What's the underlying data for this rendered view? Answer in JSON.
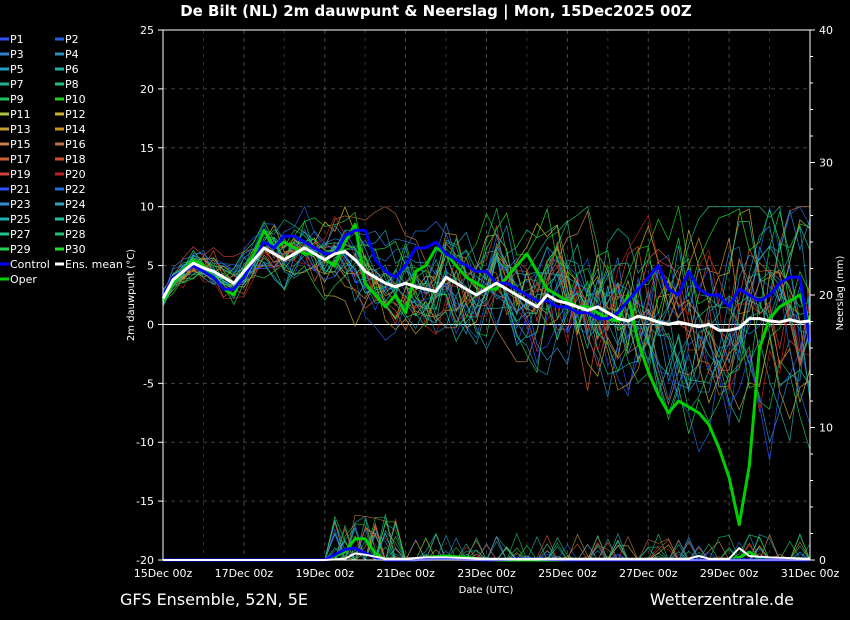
{
  "chart_data": {
    "type": "line",
    "title": "De Bilt  (NL)  2m dauwpunt & Neerslag | Mon, 15Dec2025 00Z",
    "xlabel": "Date (UTC)",
    "ylabel": "2m dauwpunt (°C)",
    "y2label": "Neerslag (mm)",
    "footer_left": "GFS Ensemble, 52N, 5E",
    "footer_right": "Wetterzentrale.de",
    "x_tick_labels": [
      "15Dec 00z",
      "17Dec 00z",
      "19Dec 00z",
      "21Dec 00z",
      "23Dec 00z",
      "25Dec 00z",
      "27Dec 00z",
      "29Dec 00z",
      "31Dec 00z"
    ],
    "y_ticks": [
      "25",
      "20",
      "15",
      "10",
      "5",
      "0",
      "-5",
      "-10",
      "-15",
      "-20"
    ],
    "y2_ticks": [
      "40",
      "30",
      "20",
      "10",
      "0"
    ],
    "ylim": [
      -20,
      25
    ],
    "y2lim": [
      0,
      40
    ],
    "x_range_days": [
      0,
      16
    ],
    "grid": true,
    "legend_placement": "left",
    "legend": [
      {
        "label": "P1",
        "color": "#3050ff"
      },
      {
        "label": "P2",
        "color": "#2060e0"
      },
      {
        "label": "P3",
        "color": "#3080d0"
      },
      {
        "label": "P4",
        "color": "#2a90c0"
      },
      {
        "label": "P5",
        "color": "#20a0c0"
      },
      {
        "label": "P6",
        "color": "#20b0a0"
      },
      {
        "label": "P7",
        "color": "#20b090"
      },
      {
        "label": "P8",
        "color": "#20c080"
      },
      {
        "label": "P9",
        "color": "#20c060"
      },
      {
        "label": "P10",
        "color": "#20d020"
      },
      {
        "label": "P11",
        "color": "#b0c040"
      },
      {
        "label": "P12",
        "color": "#d0b030"
      },
      {
        "label": "P13",
        "color": "#c0a030"
      },
      {
        "label": "P14",
        "color": "#d09020"
      },
      {
        "label": "P15",
        "color": "#c08050"
      },
      {
        "label": "P16",
        "color": "#c07040"
      },
      {
        "label": "P17",
        "color": "#d06030"
      },
      {
        "label": "P18",
        "color": "#d05030"
      },
      {
        "label": "P19",
        "color": "#d04040"
      },
      {
        "label": "P20",
        "color": "#c02020"
      },
      {
        "label": "P21",
        "color": "#3050ff"
      },
      {
        "label": "P22",
        "color": "#2070e0"
      },
      {
        "label": "P23",
        "color": "#3090d0"
      },
      {
        "label": "P24",
        "color": "#30a0c0"
      },
      {
        "label": "P25",
        "color": "#20b0b0"
      },
      {
        "label": "P26",
        "color": "#20c0a0"
      },
      {
        "label": "P27",
        "color": "#20c090"
      },
      {
        "label": "P28",
        "color": "#20c070"
      },
      {
        "label": "P29",
        "color": "#20d050"
      },
      {
        "label": "P30",
        "color": "#20e030"
      },
      {
        "label": "Control",
        "color": "#0000ff"
      },
      {
        "label": "Ens. mean",
        "color": "#ffffff"
      },
      {
        "label": "Oper",
        "color": "#00d000"
      }
    ],
    "series": [
      {
        "name": "Oper",
        "color": "#00d000",
        "width": 3,
        "x": [
          0,
          0.25,
          0.5,
          0.75,
          1,
          1.25,
          1.5,
          1.75,
          2,
          2.25,
          2.5,
          2.75,
          3,
          3.25,
          3.5,
          3.75,
          4,
          4.25,
          4.5,
          4.75,
          5,
          5.25,
          5.5,
          5.75,
          6,
          6.25,
          6.5,
          6.75,
          7,
          7.25,
          7.5,
          7.75,
          8,
          8.25,
          8.5,
          8.75,
          9,
          9.25,
          9.5,
          9.75,
          10,
          10.25,
          10.5,
          10.75,
          11,
          11.25,
          11.5,
          11.75,
          12,
          12.25,
          12.5,
          12.75,
          13,
          13.25,
          13.5,
          13.75,
          14,
          14.25,
          14.5,
          14.75,
          15,
          15.25,
          15.5,
          15.75,
          16
        ],
        "y": [
          2.0,
          3.5,
          4.5,
          5.5,
          5.0,
          4.0,
          3.0,
          2.5,
          4.5,
          6.0,
          8.0,
          6.5,
          7.0,
          6.5,
          6.0,
          6.0,
          5.5,
          5.0,
          7.0,
          8.5,
          3.5,
          2.5,
          1.5,
          2.5,
          1.0,
          4.5,
          5.0,
          6.5,
          6.0,
          5.0,
          4.0,
          3.5,
          3.0,
          3.0,
          4.0,
          5.0,
          6.0,
          4.5,
          3.0,
          2.5,
          2.0,
          1.5,
          1.5,
          1.0,
          0.5,
          0.3,
          2.5,
          -1.5,
          -4.0,
          -6.0,
          -7.5,
          -6.5,
          -7.0,
          -7.5,
          -8.5,
          -10.5,
          -13.0,
          -17.0,
          -12.0,
          -2.0,
          0.5,
          1.5,
          2.0,
          2.5,
          0.0
        ]
      },
      {
        "name": "Control",
        "color": "#0000ff",
        "width": 3,
        "x": [
          0,
          0.25,
          0.5,
          0.75,
          1,
          1.25,
          1.5,
          1.75,
          2,
          2.25,
          2.5,
          2.75,
          3,
          3.25,
          3.5,
          3.75,
          4,
          4.25,
          4.5,
          4.75,
          5,
          5.25,
          5.5,
          5.75,
          6,
          6.25,
          6.5,
          6.75,
          7,
          7.25,
          7.5,
          7.75,
          8,
          8.25,
          8.5,
          8.75,
          9,
          9.25,
          9.5,
          9.75,
          10,
          10.25,
          10.5,
          10.75,
          11,
          11.25,
          11.5,
          11.75,
          12,
          12.25,
          12.5,
          12.75,
          13,
          13.25,
          13.5,
          13.75,
          14,
          14.25,
          14.5,
          14.75,
          15,
          15.25,
          15.5,
          15.75,
          16
        ],
        "y": [
          2.5,
          4.0,
          4.5,
          5.0,
          4.5,
          4.0,
          3.0,
          3.0,
          4.0,
          5.5,
          7.0,
          6.5,
          7.5,
          7.5,
          7.0,
          6.5,
          6.0,
          6.0,
          7.5,
          8.0,
          8.0,
          5.5,
          4.5,
          4.0,
          5.0,
          6.5,
          6.5,
          7.0,
          6.0,
          5.5,
          5.0,
          4.5,
          4.5,
          3.5,
          3.5,
          3.0,
          2.5,
          2.0,
          2.0,
          1.5,
          1.5,
          1.0,
          1.0,
          0.5,
          0.5,
          1.0,
          2.0,
          3.0,
          4.0,
          5.0,
          3.0,
          2.5,
          4.5,
          3.0,
          2.5,
          2.5,
          1.5,
          3.0,
          2.5,
          2.0,
          2.5,
          3.5,
          4.0,
          4.0,
          -1.5
        ]
      },
      {
        "name": "Ens. mean",
        "color": "#ffffff",
        "width": 3,
        "x": [
          0,
          0.25,
          0.5,
          0.75,
          1,
          1.25,
          1.5,
          1.75,
          2,
          2.25,
          2.5,
          2.75,
          3,
          3.25,
          3.5,
          3.75,
          4,
          4.25,
          4.5,
          4.75,
          5,
          5.25,
          5.5,
          5.75,
          6,
          6.25,
          6.5,
          6.75,
          7,
          7.25,
          7.5,
          7.75,
          8,
          8.25,
          8.5,
          8.75,
          9,
          9.25,
          9.5,
          9.75,
          10,
          10.25,
          10.5,
          10.75,
          11,
          11.25,
          11.5,
          11.75,
          12,
          12.25,
          12.5,
          12.75,
          13,
          13.25,
          13.5,
          13.75,
          14,
          14.25,
          14.5,
          14.75,
          15,
          15.25,
          15.5,
          15.75,
          16
        ],
        "y": [
          2.2,
          3.8,
          4.5,
          5.2,
          4.8,
          4.5,
          4.0,
          3.5,
          4.5,
          5.5,
          6.5,
          6.0,
          5.5,
          6.0,
          6.5,
          6.0,
          5.5,
          6.0,
          6.2,
          5.5,
          4.5,
          4.0,
          3.5,
          3.2,
          3.5,
          3.2,
          3.0,
          2.8,
          4.0,
          3.5,
          3.0,
          2.5,
          3.0,
          3.5,
          3.0,
          2.5,
          2.0,
          1.5,
          2.5,
          2.0,
          1.8,
          1.5,
          1.2,
          1.5,
          1.0,
          0.5,
          0.3,
          0.7,
          0.5,
          0.2,
          0.0,
          0.2,
          0.0,
          -0.2,
          0.0,
          -0.5,
          -0.5,
          -0.3,
          0.5,
          0.5,
          0.3,
          0.2,
          0.4,
          0.2,
          0.3
        ]
      }
    ],
    "precip_series": [
      {
        "name": "Oper",
        "color": "#00d000",
        "width": 3,
        "x": [
          0,
          2,
          4,
          4.5,
          4.75,
          5,
          5.25,
          5.5,
          5.75,
          6,
          6.25,
          6.5,
          7,
          7.5,
          8,
          9,
          10,
          11,
          12,
          13,
          14,
          14.25,
          14.5,
          14.75,
          15,
          16
        ],
        "y": [
          0,
          0,
          0,
          0.6,
          1.6,
          1.6,
          0.5,
          0,
          0,
          0,
          0,
          0.2,
          0.3,
          0.2,
          0,
          0,
          0,
          0,
          0,
          0,
          0,
          0.2,
          0.6,
          0.1,
          0,
          0
        ]
      },
      {
        "name": "Control",
        "color": "#0000ff",
        "width": 3,
        "x": [
          0,
          2,
          4,
          4.5,
          4.75,
          5,
          5.25,
          5.5,
          6,
          7,
          8,
          9,
          10,
          11,
          12,
          13,
          14,
          16
        ],
        "y": [
          0,
          0,
          0,
          0.8,
          0.9,
          0.5,
          0.2,
          0,
          0,
          0.1,
          0,
          0.1,
          0,
          0,
          0,
          0,
          0,
          0
        ]
      },
      {
        "name": "Ens. mean",
        "color": "#ffffff",
        "width": 2,
        "x": [
          0,
          2,
          4,
          4.5,
          4.75,
          5,
          5.5,
          6,
          6.5,
          7,
          8,
          9,
          10,
          11,
          12,
          13,
          13.25,
          13.5,
          13.75,
          14,
          14.25,
          14.5,
          15,
          16
        ],
        "y": [
          0,
          0,
          0,
          0.1,
          0.5,
          0.4,
          0.1,
          0.1,
          0.2,
          0.2,
          0.1,
          0.1,
          0.1,
          0.1,
          0.1,
          0.1,
          0.3,
          0.1,
          0.1,
          0.1,
          0.9,
          0.3,
          0.2,
          0.1
        ]
      }
    ]
  }
}
